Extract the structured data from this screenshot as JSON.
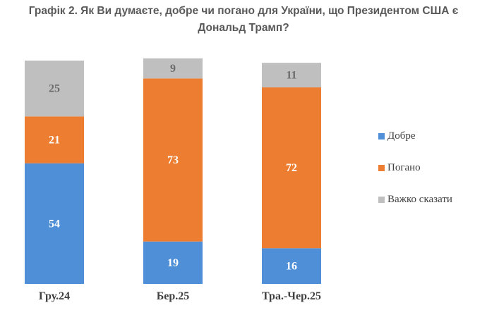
{
  "chart_data": {
    "type": "bar",
    "stacked": true,
    "title": "Графік 2. Як Ви думаєте, добре чи погано для України, що Президентом США є Дональд Трамп?",
    "categories": [
      "Гру.24",
      "Бер.25",
      "Тра.-Чер.25"
    ],
    "series": [
      {
        "name": "Добре",
        "values": [
          54,
          19,
          16
        ],
        "color": "#4E8FD8",
        "label_color": "#ffffff"
      },
      {
        "name": "Погано",
        "values": [
          21,
          73,
          72
        ],
        "color": "#EC7D31",
        "label_color": "#ffffff"
      },
      {
        "name": "Важко сказати",
        "values": [
          25,
          9,
          11
        ],
        "color": "#BFBFBF",
        "label_color": "#6b6b6b"
      }
    ],
    "ylim": [
      0,
      100
    ],
    "legend_position": "right",
    "grid": false
  }
}
